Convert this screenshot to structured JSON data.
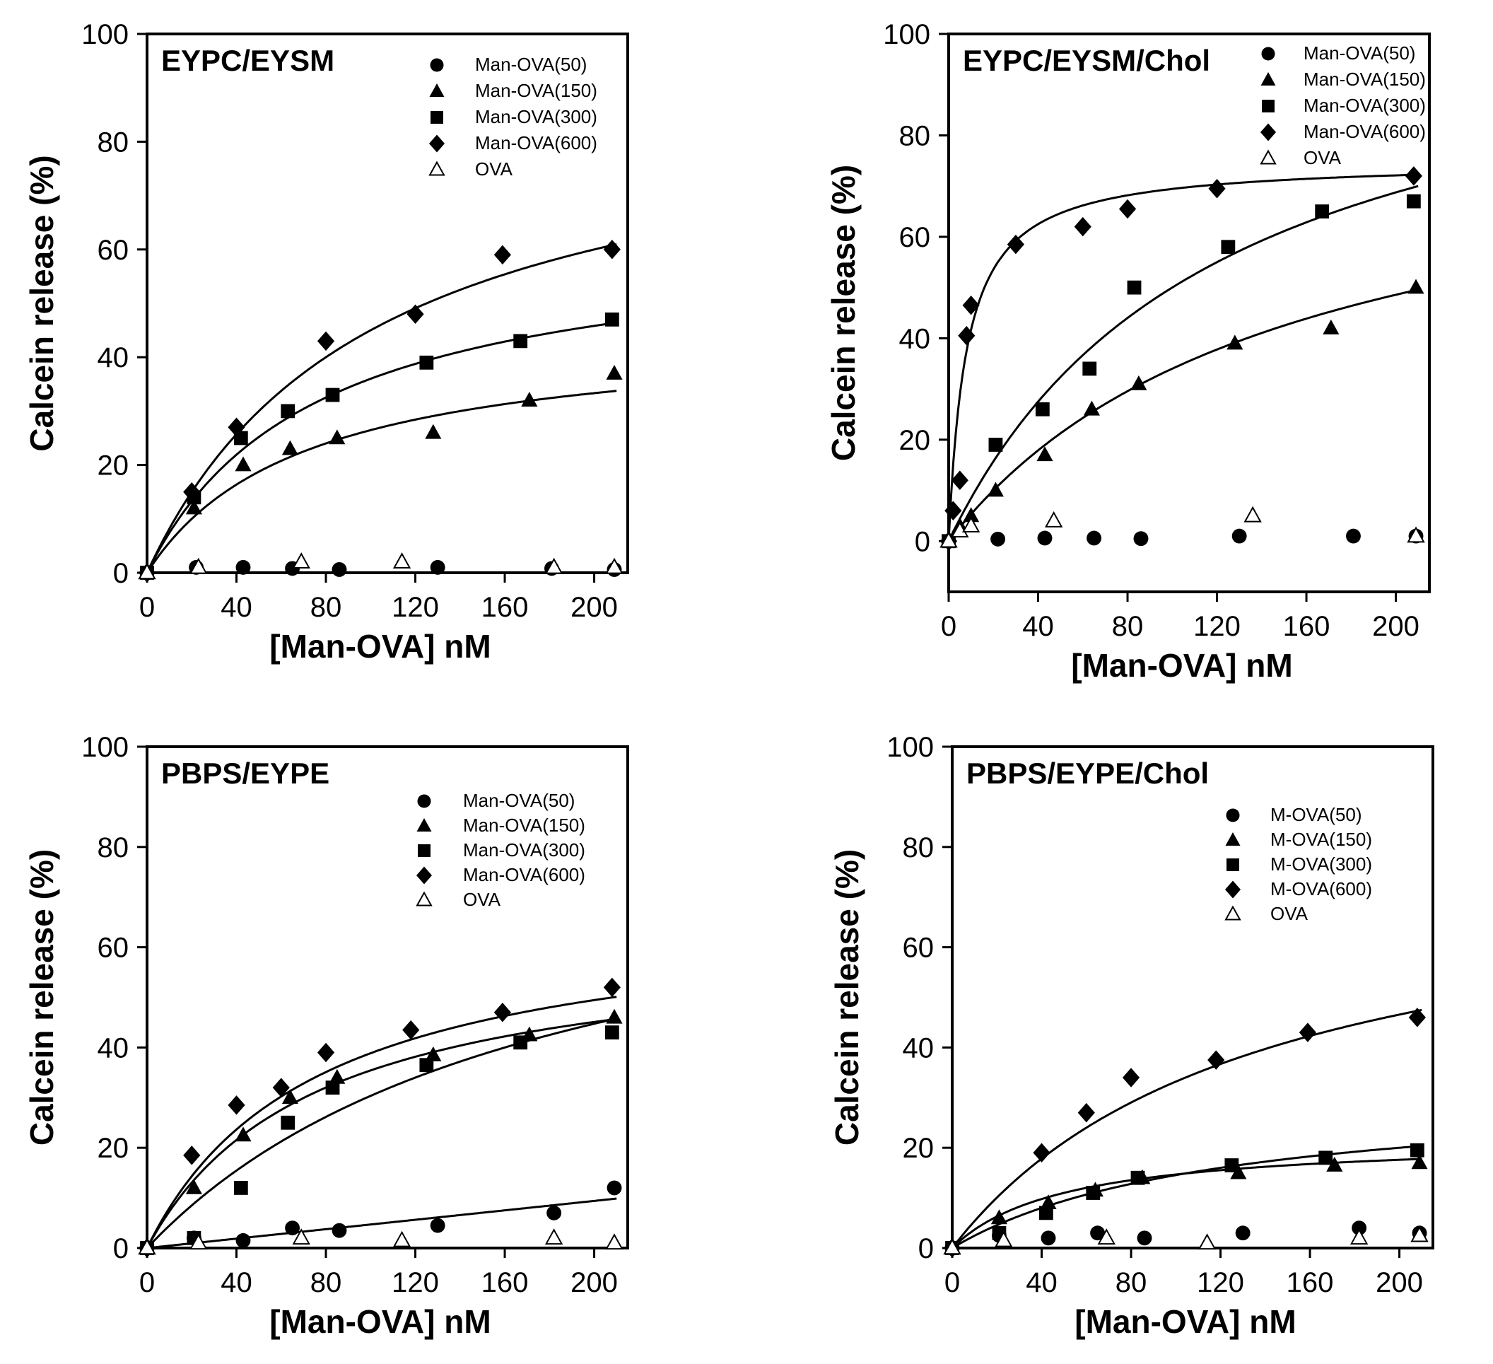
{
  "chart_data": [
    {
      "type": "scatter",
      "title": "EYPC/EYSM",
      "xlabel": "[Man-OVA] nM",
      "ylabel": "Calcein release (%)",
      "xlim": [
        0,
        215
      ],
      "ylim": [
        0,
        100
      ],
      "xticks": [
        0,
        40,
        80,
        120,
        160,
        200
      ],
      "yticks": [
        0,
        20,
        40,
        60,
        80,
        100
      ],
      "legend_position": "top-right",
      "series": [
        {
          "name": "Man-OVA(50)",
          "marker": "circle",
          "fill": "#000000",
          "x": [
            0,
            22,
            43,
            65,
            86,
            130,
            181,
            209
          ],
          "y": [
            0,
            1,
            1,
            0.8,
            0.6,
            1,
            0.8,
            0.6
          ]
        },
        {
          "name": "Man-OVA(150)",
          "marker": "triangle",
          "fill": "#000000",
          "x": [
            0,
            21,
            43,
            64,
            85,
            128,
            171,
            209
          ],
          "y": [
            0,
            12,
            20,
            23,
            25,
            26,
            32,
            37
          ],
          "fit": {
            "model": "hyperbolic",
            "max": 45,
            "k": 70
          }
        },
        {
          "name": "Man-OVA(300)",
          "marker": "square",
          "fill": "#000000",
          "x": [
            0,
            21,
            42,
            63,
            83,
            125,
            167,
            208
          ],
          "y": [
            0,
            14,
            25,
            30,
            33,
            39,
            43,
            47
          ],
          "fit": {
            "model": "hyperbolic",
            "max": 63,
            "k": 75
          }
        },
        {
          "name": "Man-OVA(600)",
          "marker": "diamond",
          "fill": "#000000",
          "x": [
            0,
            20,
            40,
            80,
            120,
            159,
            208
          ],
          "y": [
            0,
            15,
            27,
            43,
            48,
            59,
            60
          ],
          "fit": {
            "model": "hyperbolic",
            "max": 90,
            "k": 100
          }
        },
        {
          "name": "OVA",
          "marker": "open-triangle",
          "fill": "none",
          "x": [
            0,
            23,
            69,
            114,
            182,
            209
          ],
          "y": [
            0,
            1,
            2,
            2,
            1,
            1
          ]
        }
      ]
    },
    {
      "type": "scatter",
      "title": "EYPC/EYSM/Chol",
      "xlabel": "[Man-OVA] nM",
      "ylabel": "Calcein release (%)",
      "xlim": [
        0,
        215
      ],
      "ylim": [
        -10,
        100
      ],
      "xticks": [
        0,
        40,
        80,
        120,
        160,
        200
      ],
      "yticks": [
        0,
        20,
        40,
        60,
        80,
        100
      ],
      "legend_position": "top-right",
      "series": [
        {
          "name": "Man-OVA(50)",
          "marker": "circle",
          "fill": "#000000",
          "x": [
            0,
            22,
            43,
            65,
            86,
            130,
            181,
            209
          ],
          "y": [
            0,
            0.4,
            0.6,
            0.6,
            0.5,
            1,
            1,
            1
          ]
        },
        {
          "name": "Man-OVA(150)",
          "marker": "triangle",
          "fill": "#000000",
          "x": [
            0,
            5,
            10,
            21,
            43,
            64,
            85,
            128,
            171,
            209
          ],
          "y": [
            0,
            3,
            5,
            10,
            17,
            26,
            31,
            39,
            42,
            50
          ],
          "fit": {
            "model": "hyperbolic",
            "max": 85,
            "k": 150
          }
        },
        {
          "name": "Man-OVA(300)",
          "marker": "square",
          "fill": "#000000",
          "x": [
            0,
            21,
            42,
            63,
            83,
            125,
            167,
            208
          ],
          "y": [
            0,
            19,
            26,
            34,
            50,
            58,
            65,
            67
          ],
          "fit": {
            "model": "hyperbolic",
            "max": 110,
            "k": 120
          }
        },
        {
          "name": "Man-OVA(600)",
          "marker": "diamond",
          "fill": "#000000",
          "x": [
            0,
            2,
            5,
            8,
            10,
            30,
            60,
            80,
            120,
            208
          ],
          "y": [
            0,
            6,
            12,
            40.5,
            46.5,
            58.5,
            62,
            65.5,
            69.5,
            72
          ],
          "fit": {
            "model": "hyperbolic",
            "max": 75,
            "k": 8
          }
        },
        {
          "name": "OVA",
          "marker": "open-triangle",
          "fill": "none",
          "x": [
            0,
            5,
            10,
            47,
            136,
            209
          ],
          "y": [
            0,
            2,
            3,
            4,
            5,
            1
          ]
        }
      ]
    },
    {
      "type": "scatter",
      "title": "PBPS/EYPE",
      "xlabel": "[Man-OVA] nM",
      "ylabel": "Calcein release (%)",
      "xlim": [
        0,
        215
      ],
      "ylim": [
        0,
        100
      ],
      "xticks": [
        0,
        40,
        80,
        120,
        160,
        200
      ],
      "yticks": [
        0,
        20,
        40,
        60,
        80,
        100
      ],
      "legend_position": "top-right",
      "series": [
        {
          "name": "Man-OVA(50)",
          "marker": "circle",
          "fill": "#000000",
          "x": [
            0,
            21,
            43,
            65,
            86,
            130,
            182,
            209
          ],
          "y": [
            0,
            2,
            1.5,
            4,
            3.5,
            4.5,
            7,
            12
          ],
          "fit": {
            "model": "linear",
            "slope": 0.047
          }
        },
        {
          "name": "Man-OVA(150)",
          "marker": "triangle",
          "fill": "#000000",
          "x": [
            0,
            21,
            43,
            64,
            85,
            128,
            171,
            209
          ],
          "y": [
            0,
            12,
            22.5,
            30,
            34,
            38.5,
            42.5,
            46
          ],
          "fit": {
            "model": "hyperbolic",
            "max": 62,
            "k": 75
          }
        },
        {
          "name": "Man-OVA(300)",
          "marker": "square",
          "fill": "#000000",
          "x": [
            0,
            21,
            42,
            63,
            83,
            125,
            167,
            208
          ],
          "y": [
            0,
            2,
            12,
            25,
            32,
            36.5,
            41,
            43
          ],
          "fit": {
            "model": "hyperbolic",
            "max": 85,
            "k": 180
          }
        },
        {
          "name": "Man-OVA(600)",
          "marker": "diamond",
          "fill": "#000000",
          "x": [
            0,
            20,
            40,
            60,
            80,
            118,
            159,
            208
          ],
          "y": [
            0,
            18.5,
            28.5,
            32,
            39,
            43.5,
            47,
            52
          ],
          "fit": {
            "model": "hyperbolic",
            "max": 68,
            "k": 75
          }
        },
        {
          "name": "OVA",
          "marker": "open-triangle",
          "fill": "none",
          "x": [
            0,
            23,
            69,
            114,
            182,
            209
          ],
          "y": [
            0,
            1,
            2,
            1.5,
            2,
            1
          ]
        }
      ]
    },
    {
      "type": "scatter",
      "title": "PBPS/EYPE/Chol",
      "xlabel": "[Man-OVA] nM",
      "ylabel": "Calcein release (%)",
      "xlim": [
        0,
        215
      ],
      "ylim": [
        0,
        100
      ],
      "xticks": [
        0,
        40,
        80,
        120,
        160,
        200
      ],
      "yticks": [
        0,
        20,
        40,
        60,
        80,
        100
      ],
      "legend_position": "top-right",
      "series": [
        {
          "name": "M-OVA(50)",
          "marker": "circle",
          "fill": "#000000",
          "x": [
            0,
            21,
            43,
            65,
            86,
            130,
            182,
            209
          ],
          "y": [
            0,
            2.5,
            2,
            3,
            2,
            3,
            4,
            3
          ]
        },
        {
          "name": "M-OVA(150)",
          "marker": "triangle",
          "fill": "#000000",
          "x": [
            0,
            21,
            43,
            64,
            85,
            128,
            171,
            209
          ],
          "y": [
            0,
            6,
            9,
            11.5,
            14,
            15,
            16.5,
            17
          ],
          "fit": {
            "model": "hyperbolic",
            "max": 22,
            "k": 50
          }
        },
        {
          "name": "M-OVA(300)",
          "marker": "square",
          "fill": "#000000",
          "x": [
            0,
            21,
            42,
            63,
            83,
            125,
            167,
            208
          ],
          "y": [
            0,
            3,
            7,
            11,
            14,
            16.5,
            18,
            19.5
          ],
          "fit": {
            "model": "hyperbolic",
            "max": 32,
            "k": 120
          }
        },
        {
          "name": "M-OVA(600)",
          "marker": "diamond",
          "fill": "#000000",
          "x": [
            0,
            40,
            60,
            80,
            118,
            159,
            208
          ],
          "y": [
            0,
            19,
            27,
            34,
            37.5,
            43,
            46
          ],
          "fit": {
            "model": "hyperbolic",
            "max": 78,
            "k": 135
          }
        },
        {
          "name": "OVA",
          "marker": "open-triangle",
          "fill": "none",
          "x": [
            0,
            23,
            69,
            114,
            182,
            209
          ],
          "y": [
            0,
            1.5,
            2,
            1,
            2,
            2.5
          ]
        }
      ]
    }
  ]
}
